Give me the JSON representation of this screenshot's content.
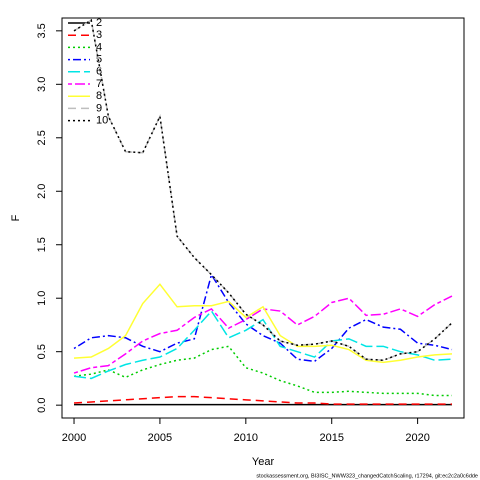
{
  "chart_data": {
    "type": "line",
    "x_label": "Year",
    "y_label": "F",
    "footer": "stockassessment.org, BI3ISC_NWW323_changedCatchScaling, r17294, git:ec2c2a0c6dde",
    "x": [
      2000,
      2001,
      2002,
      2003,
      2004,
      2005,
      2006,
      2007,
      2008,
      2009,
      2010,
      2011,
      2012,
      2013,
      2014,
      2015,
      2016,
      2017,
      2018,
      2019,
      2020,
      2021,
      2022
    ],
    "xlim": [
      1999.3,
      2022.7
    ],
    "xticks": [
      2000,
      2005,
      2010,
      2015,
      2020
    ],
    "ylim": [
      -0.12,
      3.62
    ],
    "yticks": [
      {
        "value": 0,
        "label": "0.0"
      },
      0.5,
      {
        "value": 1,
        "label": "1.0"
      },
      1.5,
      {
        "value": 2,
        "label": "2.0"
      },
      2.5,
      {
        "value": 3,
        "label": "3.0"
      },
      3.5
    ],
    "legend": "top-left",
    "series": [
      {
        "name": "2",
        "color": "#000000",
        "dash": "none",
        "values": [
          0.005,
          0.005,
          0.005,
          0.005,
          0.005,
          0.005,
          0.005,
          0.005,
          0.005,
          0.005,
          0.005,
          0.005,
          0.005,
          0.005,
          0.005,
          0.005,
          0.005,
          0.005,
          0.005,
          0.005,
          0.005,
          0.005,
          0.005
        ]
      },
      {
        "name": "3",
        "color": "#ff0000",
        "dash": "8,5",
        "values": [
          0.02,
          0.03,
          0.04,
          0.05,
          0.06,
          0.07,
          0.08,
          0.08,
          0.07,
          0.06,
          0.05,
          0.04,
          0.03,
          0.02,
          0.02,
          0.01,
          0.01,
          0.01,
          0.01,
          0.01,
          0.01,
          0.01,
          0.01
        ]
      },
      {
        "name": "4",
        "color": "#00cc00",
        "dash": "2,3",
        "values": [
          0.27,
          0.29,
          0.33,
          0.26,
          0.33,
          0.38,
          0.42,
          0.44,
          0.52,
          0.55,
          0.35,
          0.3,
          0.23,
          0.18,
          0.12,
          0.12,
          0.13,
          0.12,
          0.11,
          0.11,
          0.11,
          0.09,
          0.09
        ]
      },
      {
        "name": "5",
        "color": "#0000ff",
        "dash": "2,3,8,3",
        "values": [
          0.53,
          0.63,
          0.65,
          0.63,
          0.55,
          0.5,
          0.58,
          0.62,
          1.22,
          0.96,
          0.76,
          0.65,
          0.58,
          0.43,
          0.41,
          0.53,
          0.72,
          0.8,
          0.73,
          0.71,
          0.58,
          0.56,
          0.52
        ]
      },
      {
        "name": "6",
        "color": "#00e5e5",
        "dash": "12,4",
        "values": [
          0.27,
          0.25,
          0.32,
          0.38,
          0.42,
          0.45,
          0.53,
          0.7,
          0.88,
          0.63,
          0.7,
          0.8,
          0.55,
          0.5,
          0.45,
          0.6,
          0.62,
          0.55,
          0.55,
          0.5,
          0.47,
          0.42,
          0.43
        ]
      },
      {
        "name": "7",
        "color": "#ff00ff",
        "dash": "4,3,10,3",
        "values": [
          0.3,
          0.35,
          0.37,
          0.48,
          0.6,
          0.67,
          0.7,
          0.82,
          0.9,
          0.72,
          0.8,
          0.9,
          0.88,
          0.75,
          0.83,
          0.96,
          1.0,
          0.84,
          0.85,
          0.9,
          0.83,
          0.94,
          1.02
        ]
      },
      {
        "name": "8",
        "color": "#ffff33",
        "dash": "none",
        "values": [
          0.44,
          0.45,
          0.53,
          0.65,
          0.95,
          1.13,
          0.92,
          0.93,
          0.93,
          0.97,
          0.82,
          0.92,
          0.65,
          0.55,
          0.55,
          0.56,
          0.52,
          0.42,
          0.4,
          0.42,
          0.45,
          0.47,
          0.48
        ]
      },
      {
        "name": "9",
        "color": "#bebebe",
        "dash": "8,5",
        "values": [
          3.5,
          3.6,
          2.7,
          2.37,
          2.36,
          2.7,
          1.58,
          1.38,
          1.22,
          1.05,
          0.85,
          0.75,
          0.6,
          0.56,
          0.57,
          0.6,
          0.55,
          0.43,
          0.42,
          0.48,
          0.5,
          0.62,
          0.77
        ]
      },
      {
        "name": "10",
        "color": "#000000",
        "dash": "2,3",
        "values": [
          3.5,
          3.6,
          2.7,
          2.37,
          2.36,
          2.7,
          1.58,
          1.38,
          1.22,
          1.05,
          0.85,
          0.75,
          0.6,
          0.56,
          0.57,
          0.6,
          0.55,
          0.43,
          0.42,
          0.48,
          0.5,
          0.62,
          0.77
        ]
      }
    ]
  }
}
